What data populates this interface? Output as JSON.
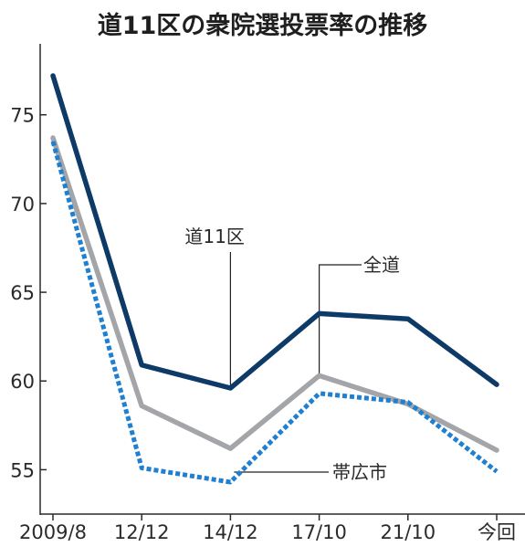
{
  "chart_data": {
    "type": "line",
    "title": "道11区の衆院選投票率の推移",
    "categories": [
      "2009/8",
      "12/12",
      "14/12",
      "17/10",
      "21/10",
      "今回"
    ],
    "yticks": [
      75,
      70,
      65,
      60,
      55
    ],
    "ylim": [
      52.5,
      79
    ],
    "grid": false,
    "series": [
      {
        "name": "道11区",
        "color": "#0d3a67",
        "style": "solid",
        "values": [
          77.2,
          60.9,
          59.6,
          63.8,
          63.5,
          59.8
        ]
      },
      {
        "name": "全道",
        "color": "#a3a5a8",
        "style": "solid",
        "values": [
          73.7,
          58.6,
          56.2,
          60.3,
          58.7,
          56.1
        ]
      },
      {
        "name": "帯広市",
        "color": "#1f7fd1",
        "style": "dotted",
        "values": [
          73.5,
          55.1,
          54.3,
          59.3,
          58.8,
          54.9
        ]
      }
    ],
    "annotations": [
      {
        "text": "道11区",
        "series": 0,
        "point": 2
      },
      {
        "text": "全道",
        "series": 1,
        "point": 3
      },
      {
        "text": "帯広市",
        "series": 2,
        "point": 2
      }
    ]
  }
}
